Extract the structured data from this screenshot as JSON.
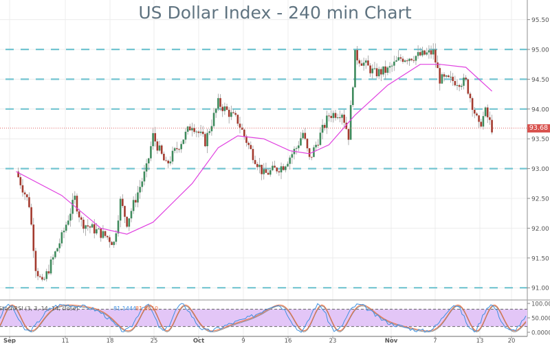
{
  "chart_data": {
    "type": "candlestick",
    "title": "US Dollar Index - 240 min Chart",
    "xlabel": "",
    "ylabel": "",
    "ylim": [
      90.8,
      95.8
    ],
    "grid": true,
    "price_axis_ticks": [
      "95.50",
      "95.00",
      "94.50",
      "94.00",
      "93.50",
      "93.00",
      "92.50",
      "92.00",
      "91.50",
      "91.00"
    ],
    "time_axis_ticks": [
      "Sep",
      "11",
      "18",
      "25",
      "Oct",
      "9",
      "16",
      "23",
      "Nov",
      "7",
      "13",
      "20"
    ],
    "current_price": "93.68",
    "horizontal_levels": [
      95.0,
      94.5,
      94.0,
      93.0,
      91.0
    ],
    "approx_close_path": [
      {
        "date": "Sep 5",
        "close": 92.95
      },
      {
        "date": "Sep 7",
        "close": 92.4
      },
      {
        "date": "Sep 8",
        "close": 91.35
      },
      {
        "date": "Sep 9",
        "close": 91.05
      },
      {
        "date": "Sep 12",
        "close": 91.85
      },
      {
        "date": "Sep 14",
        "close": 92.5
      },
      {
        "date": "Sep 15",
        "close": 92.1
      },
      {
        "date": "Sep 19",
        "close": 91.85
      },
      {
        "date": "Sep 20",
        "close": 91.75
      },
      {
        "date": "Sep 21",
        "close": 92.45
      },
      {
        "date": "Sep 22",
        "close": 92.1
      },
      {
        "date": "Sep 25",
        "close": 93.0
      },
      {
        "date": "Sep 26",
        "close": 93.55
      },
      {
        "date": "Sep 28",
        "close": 93.05
      },
      {
        "date": "Oct 2",
        "close": 93.75
      },
      {
        "date": "Oct 4",
        "close": 93.45
      },
      {
        "date": "Oct 6",
        "close": 94.1
      },
      {
        "date": "Oct 9",
        "close": 93.8
      },
      {
        "date": "Oct 11",
        "close": 93.3
      },
      {
        "date": "Oct 13",
        "close": 92.9
      },
      {
        "date": "Oct 16",
        "close": 93.05
      },
      {
        "date": "Oct 18",
        "close": 93.35
      },
      {
        "date": "Oct 19",
        "close": 93.6
      },
      {
        "date": "Oct 20",
        "close": 93.15
      },
      {
        "date": "Oct 23",
        "close": 93.9
      },
      {
        "date": "Oct 25",
        "close": 93.95
      },
      {
        "date": "Oct 26",
        "close": 93.55
      },
      {
        "date": "Oct 27",
        "close": 94.9
      },
      {
        "date": "Oct 30",
        "close": 94.6
      },
      {
        "date": "Nov 1",
        "close": 94.65
      },
      {
        "date": "Nov 3",
        "close": 94.85
      },
      {
        "date": "Nov 6",
        "close": 94.9
      },
      {
        "date": "Nov 8",
        "close": 94.95
      },
      {
        "date": "Nov 9",
        "close": 94.5
      },
      {
        "date": "Nov 13",
        "close": 94.45
      },
      {
        "date": "Nov 15",
        "close": 93.7
      },
      {
        "date": "Nov 16",
        "close": 93.95
      },
      {
        "date": "Nov 17",
        "close": 93.68
      }
    ],
    "moving_average": {
      "name": "MA",
      "color": "#e040e0",
      "approx_values": [
        {
          "date": "Sep 5",
          "value": 92.95
        },
        {
          "date": "Sep 12",
          "value": 92.55
        },
        {
          "date": "Sep 18",
          "value": 92.0
        },
        {
          "date": "Sep 22",
          "value": 91.9
        },
        {
          "date": "Sep 26",
          "value": 92.1
        },
        {
          "date": "Oct 2",
          "value": 92.75
        },
        {
          "date": "Oct 6",
          "value": 93.35
        },
        {
          "date": "Oct 9",
          "value": 93.55
        },
        {
          "date": "Oct 13",
          "value": 93.5
        },
        {
          "date": "Oct 17",
          "value": 93.3
        },
        {
          "date": "Oct 20",
          "value": 93.25
        },
        {
          "date": "Oct 23",
          "value": 93.4
        },
        {
          "date": "Oct 27",
          "value": 93.9
        },
        {
          "date": "Nov 1",
          "value": 94.4
        },
        {
          "date": "Nov 6",
          "value": 94.75
        },
        {
          "date": "Nov 9",
          "value": 94.75
        },
        {
          "date": "Nov 13",
          "value": 94.7
        },
        {
          "date": "Nov 17",
          "value": 94.3
        }
      ]
    },
    "oscillator": {
      "name": "Stoch RSI",
      "legend": "StochRSI (3, 3, 14, 14, close)",
      "k_value": "81.1444",
      "d_value": "81.0610",
      "k_color": "#3d8fe0",
      "d_color": "#f07040",
      "axis_ticks": [
        "100.0000",
        "50.0000",
        "0.0000"
      ],
      "upper_band": 80,
      "lower_band": 20,
      "band_fill": "#e3c6f7"
    },
    "colors": {
      "up_candle": "#3e8a5c",
      "down_candle": "#a33a2e",
      "level_line": "#72c4d0",
      "price_line": "#e06060",
      "price_tag": "#d9534f"
    }
  }
}
